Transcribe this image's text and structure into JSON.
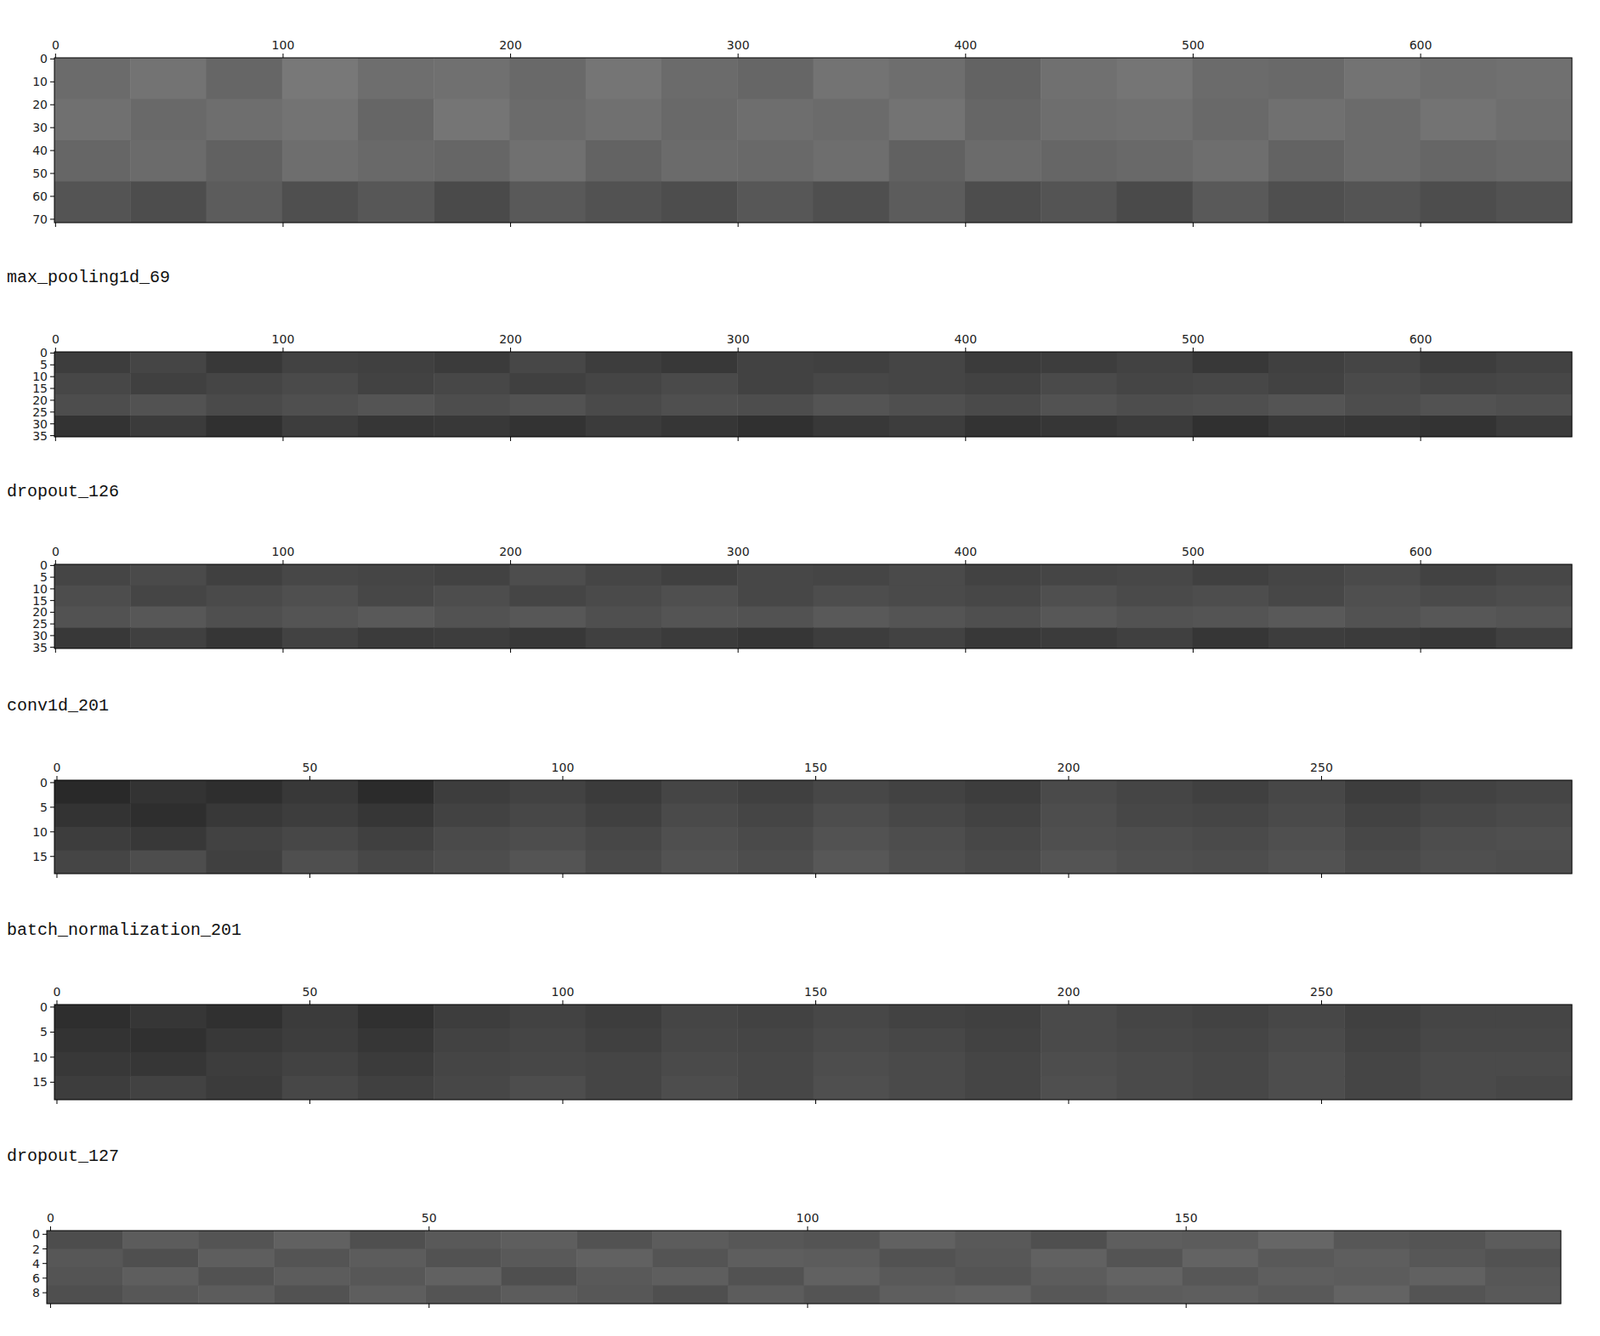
{
  "chart_data": [
    {
      "type": "heatmap",
      "color_range": [
        0,
        1
      ],
      "xlim": [
        -0.5,
        666.5
      ],
      "ylim": [
        71.5,
        -0.5
      ],
      "xticks": [
        0,
        100,
        200,
        300,
        400,
        500,
        600
      ],
      "yticks": [
        0,
        10,
        20,
        30,
        40,
        50,
        60,
        70
      ],
      "cells": [
        [
          0.42,
          0.45,
          0.4,
          0.47,
          0.43,
          0.44,
          0.41,
          0.46,
          0.42,
          0.4,
          0.45,
          0.43,
          0.39,
          0.44,
          0.46,
          0.42,
          0.41,
          0.45,
          0.43,
          0.44
        ],
        [
          0.44,
          0.41,
          0.43,
          0.45,
          0.4,
          0.46,
          0.42,
          0.44,
          0.41,
          0.43,
          0.42,
          0.45,
          0.4,
          0.43,
          0.44,
          0.41,
          0.44,
          0.42,
          0.45,
          0.43
        ],
        [
          0.4,
          0.42,
          0.38,
          0.43,
          0.41,
          0.4,
          0.44,
          0.39,
          0.42,
          0.41,
          0.43,
          0.38,
          0.42,
          0.4,
          0.41,
          0.43,
          0.39,
          0.42,
          0.4,
          0.41
        ],
        [
          0.33,
          0.3,
          0.36,
          0.31,
          0.34,
          0.29,
          0.35,
          0.32,
          0.3,
          0.34,
          0.31,
          0.36,
          0.3,
          0.33,
          0.29,
          0.35,
          0.31,
          0.33,
          0.3,
          0.32
        ]
      ]
    },
    {
      "type": "heatmap",
      "title": "max_pooling1d_69",
      "color_range": [
        0,
        1
      ],
      "xlim": [
        -0.5,
        666.5
      ],
      "ylim": [
        35.5,
        -0.5
      ],
      "xticks": [
        0,
        100,
        200,
        300,
        400,
        500,
        600
      ],
      "yticks": [
        0,
        5,
        10,
        15,
        20,
        25,
        30,
        35
      ],
      "cells": [
        [
          0.24,
          0.27,
          0.22,
          0.26,
          0.25,
          0.23,
          0.28,
          0.24,
          0.22,
          0.26,
          0.25,
          0.27,
          0.23,
          0.24,
          0.26,
          0.22,
          0.25,
          0.27,
          0.24,
          0.26
        ],
        [
          0.28,
          0.25,
          0.27,
          0.29,
          0.26,
          0.28,
          0.25,
          0.27,
          0.29,
          0.26,
          0.28,
          0.27,
          0.26,
          0.29,
          0.27,
          0.28,
          0.26,
          0.29,
          0.27,
          0.28
        ],
        [
          0.3,
          0.32,
          0.29,
          0.31,
          0.33,
          0.3,
          0.32,
          0.29,
          0.31,
          0.3,
          0.33,
          0.31,
          0.29,
          0.32,
          0.3,
          0.31,
          0.33,
          0.3,
          0.32,
          0.31
        ],
        [
          0.2,
          0.23,
          0.19,
          0.24,
          0.21,
          0.22,
          0.2,
          0.23,
          0.21,
          0.19,
          0.22,
          0.24,
          0.2,
          0.21,
          0.23,
          0.19,
          0.22,
          0.21,
          0.2,
          0.23
        ]
      ]
    },
    {
      "type": "heatmap",
      "title": "dropout_126",
      "color_range": [
        0,
        1
      ],
      "xlim": [
        -0.5,
        666.5
      ],
      "ylim": [
        35.5,
        -0.5
      ],
      "xticks": [
        0,
        100,
        200,
        300,
        400,
        500,
        600
      ],
      "yticks": [
        0,
        5,
        10,
        15,
        20,
        25,
        30,
        35
      ],
      "cells": [
        [
          0.27,
          0.29,
          0.25,
          0.28,
          0.27,
          0.26,
          0.3,
          0.27,
          0.25,
          0.28,
          0.27,
          0.29,
          0.26,
          0.27,
          0.28,
          0.25,
          0.27,
          0.29,
          0.26,
          0.28
        ],
        [
          0.3,
          0.27,
          0.29,
          0.31,
          0.28,
          0.3,
          0.27,
          0.29,
          0.31,
          0.28,
          0.3,
          0.29,
          0.28,
          0.31,
          0.29,
          0.3,
          0.28,
          0.31,
          0.29,
          0.3
        ],
        [
          0.32,
          0.34,
          0.31,
          0.33,
          0.35,
          0.32,
          0.34,
          0.31,
          0.33,
          0.32,
          0.35,
          0.33,
          0.31,
          0.34,
          0.32,
          0.33,
          0.35,
          0.32,
          0.34,
          0.33
        ],
        [
          0.22,
          0.25,
          0.21,
          0.26,
          0.23,
          0.24,
          0.22,
          0.25,
          0.23,
          0.21,
          0.24,
          0.26,
          0.22,
          0.23,
          0.25,
          0.21,
          0.24,
          0.23,
          0.22,
          0.25
        ]
      ]
    },
    {
      "type": "heatmap",
      "title": "conv1d_201",
      "color_range": [
        0,
        1
      ],
      "xlim": [
        -0.5,
        299.5
      ],
      "ylim": [
        18.5,
        -0.5
      ],
      "xticks": [
        0,
        50,
        100,
        150,
        200,
        250
      ],
      "yticks": [
        0,
        5,
        10,
        15
      ],
      "cells": [
        [
          0.16,
          0.2,
          0.18,
          0.22,
          0.17,
          0.24,
          0.26,
          0.23,
          0.27,
          0.25,
          0.28,
          0.26,
          0.24,
          0.29,
          0.27,
          0.25,
          0.28,
          0.24,
          0.26,
          0.27
        ],
        [
          0.2,
          0.18,
          0.22,
          0.24,
          0.21,
          0.26,
          0.28,
          0.25,
          0.29,
          0.27,
          0.3,
          0.28,
          0.26,
          0.3,
          0.28,
          0.27,
          0.29,
          0.26,
          0.28,
          0.29
        ],
        [
          0.24,
          0.22,
          0.26,
          0.28,
          0.25,
          0.29,
          0.3,
          0.28,
          0.31,
          0.29,
          0.32,
          0.3,
          0.28,
          0.31,
          0.3,
          0.29,
          0.31,
          0.28,
          0.3,
          0.31
        ],
        [
          0.27,
          0.3,
          0.25,
          0.31,
          0.28,
          0.3,
          0.33,
          0.29,
          0.32,
          0.3,
          0.34,
          0.31,
          0.29,
          0.33,
          0.31,
          0.3,
          0.32,
          0.29,
          0.31,
          0.3
        ]
      ]
    },
    {
      "type": "heatmap",
      "title": "batch_normalization_201",
      "color_range": [
        0,
        1
      ],
      "xlim": [
        -0.5,
        299.5
      ],
      "ylim": [
        18.5,
        -0.5
      ],
      "xticks": [
        0,
        50,
        100,
        150,
        200,
        250
      ],
      "yticks": [
        0,
        5,
        10,
        15
      ],
      "cells": [
        [
          0.18,
          0.21,
          0.19,
          0.23,
          0.19,
          0.24,
          0.26,
          0.24,
          0.27,
          0.26,
          0.28,
          0.26,
          0.25,
          0.29,
          0.27,
          0.26,
          0.28,
          0.25,
          0.27,
          0.27
        ],
        [
          0.2,
          0.19,
          0.22,
          0.24,
          0.21,
          0.26,
          0.27,
          0.25,
          0.28,
          0.27,
          0.29,
          0.28,
          0.26,
          0.29,
          0.28,
          0.27,
          0.29,
          0.26,
          0.28,
          0.28
        ],
        [
          0.22,
          0.21,
          0.24,
          0.26,
          0.23,
          0.27,
          0.28,
          0.27,
          0.29,
          0.28,
          0.3,
          0.29,
          0.27,
          0.3,
          0.29,
          0.28,
          0.3,
          0.27,
          0.29,
          0.29
        ],
        [
          0.24,
          0.26,
          0.23,
          0.28,
          0.25,
          0.28,
          0.3,
          0.27,
          0.3,
          0.28,
          0.31,
          0.29,
          0.27,
          0.31,
          0.29,
          0.28,
          0.3,
          0.27,
          0.29,
          0.28
        ]
      ]
    },
    {
      "type": "heatmap",
      "title": "dropout_127",
      "color_range": [
        0,
        1
      ],
      "xlim": [
        -0.5,
        199.5
      ],
      "ylim": [
        9.5,
        -0.5
      ],
      "xticks": [
        0,
        50,
        100,
        150
      ],
      "yticks": [
        0,
        2,
        4,
        6,
        8
      ],
      "cells": [
        [
          0.3,
          0.36,
          0.33,
          0.38,
          0.31,
          0.35,
          0.37,
          0.32,
          0.36,
          0.34,
          0.33,
          0.38,
          0.35,
          0.31,
          0.37,
          0.36,
          0.4,
          0.34,
          0.33,
          0.36
        ],
        [
          0.34,
          0.31,
          0.37,
          0.33,
          0.36,
          0.32,
          0.35,
          0.38,
          0.33,
          0.37,
          0.36,
          0.32,
          0.34,
          0.38,
          0.33,
          0.39,
          0.35,
          0.37,
          0.34,
          0.32
        ],
        [
          0.33,
          0.37,
          0.32,
          0.36,
          0.34,
          0.38,
          0.31,
          0.35,
          0.37,
          0.32,
          0.38,
          0.35,
          0.33,
          0.36,
          0.39,
          0.34,
          0.37,
          0.36,
          0.38,
          0.34
        ],
        [
          0.31,
          0.34,
          0.36,
          0.32,
          0.37,
          0.33,
          0.36,
          0.34,
          0.31,
          0.36,
          0.33,
          0.37,
          0.38,
          0.34,
          0.36,
          0.37,
          0.35,
          0.39,
          0.33,
          0.35
        ]
      ]
    }
  ]
}
